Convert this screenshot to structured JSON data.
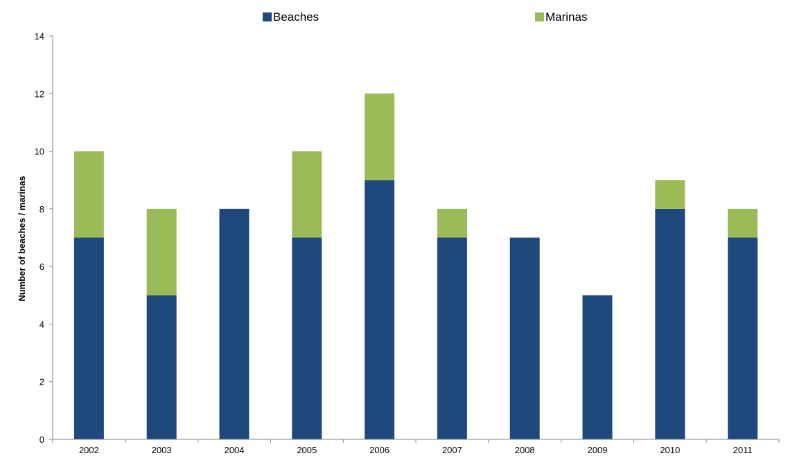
{
  "chart_data": {
    "type": "bar",
    "stacked": true,
    "categories": [
      "2002",
      "2003",
      "2004",
      "2005",
      "2006",
      "2007",
      "2008",
      "2009",
      "2010",
      "2011"
    ],
    "series": [
      {
        "name": "Beaches",
        "color": "#1f497d",
        "values": [
          7,
          5,
          8,
          7,
          9,
          7,
          7,
          5,
          8,
          7
        ]
      },
      {
        "name": "Marinas",
        "color": "#9bbb59",
        "values": [
          3,
          3,
          0,
          3,
          3,
          1,
          0,
          0,
          1,
          1
        ]
      }
    ],
    "title": "",
    "xlabel": "",
    "ylabel": "Number of beaches / marinas",
    "ylim": [
      0,
      14
    ],
    "yticks": [
      0,
      2,
      4,
      6,
      8,
      10,
      12,
      14
    ],
    "grid": false,
    "legend": "top-center"
  }
}
